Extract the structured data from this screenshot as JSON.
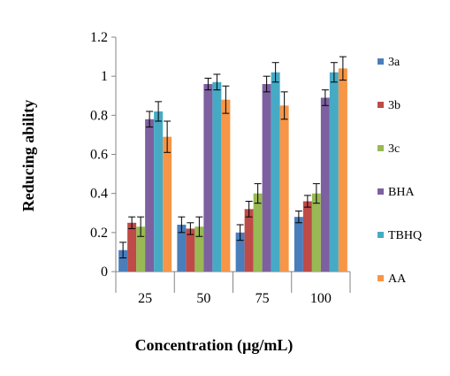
{
  "chart_data": {
    "type": "bar",
    "title": "",
    "xlabel": "Concentration (µg/mL)",
    "ylabel": "Reducing ability",
    "categories": [
      "25",
      "50",
      "75",
      "100"
    ],
    "ylim": [
      0,
      1.2
    ],
    "yticks": [
      "0",
      "0.2",
      "0.4",
      "0.6",
      "0.8",
      "1",
      "1.2"
    ],
    "grid": false,
    "legend_position": "right",
    "series": [
      {
        "name": "3a",
        "color": "#4a7ebb",
        "values": [
          0.11,
          0.24,
          0.2,
          0.28
        ],
        "errors": [
          0.04,
          0.04,
          0.04,
          0.03
        ]
      },
      {
        "name": "3b",
        "color": "#be4b48",
        "values": [
          0.25,
          0.22,
          0.32,
          0.36
        ],
        "errors": [
          0.03,
          0.03,
          0.04,
          0.03
        ]
      },
      {
        "name": "3c",
        "color": "#98b954",
        "values": [
          0.23,
          0.23,
          0.4,
          0.4
        ],
        "errors": [
          0.05,
          0.05,
          0.05,
          0.05
        ]
      },
      {
        "name": "BHA",
        "color": "#7d60a0",
        "values": [
          0.78,
          0.96,
          0.96,
          0.89
        ],
        "errors": [
          0.04,
          0.03,
          0.04,
          0.04
        ]
      },
      {
        "name": "TBHQ",
        "color": "#46aac5",
        "values": [
          0.82,
          0.97,
          1.02,
          1.02
        ],
        "errors": [
          0.05,
          0.04,
          0.05,
          0.05
        ]
      },
      {
        "name": "AA",
        "color": "#f79646",
        "values": [
          0.69,
          0.88,
          0.85,
          1.04
        ],
        "errors": [
          0.08,
          0.07,
          0.07,
          0.06
        ]
      }
    ]
  }
}
